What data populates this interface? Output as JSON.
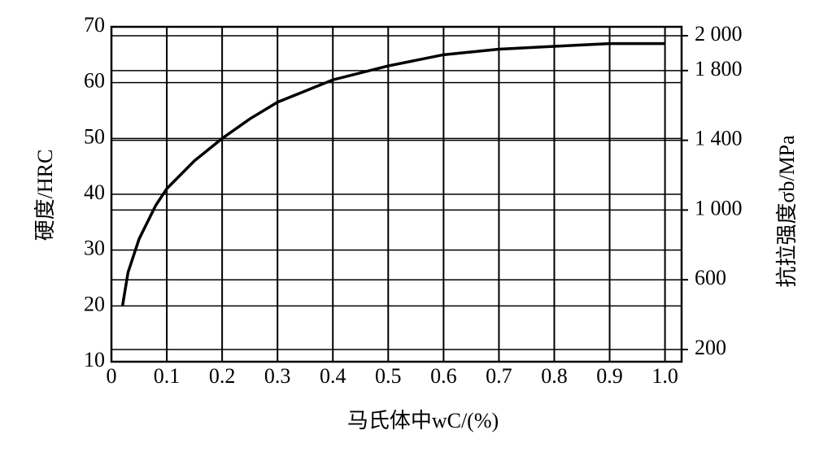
{
  "chart_data": {
    "type": "line",
    "x_label": "马氏体中wC/(%)",
    "y_label": "硬度/HRC",
    "y2_label": "抗拉强度σb/MPa",
    "x": [
      0.02,
      0.03,
      0.05,
      0.08,
      0.1,
      0.15,
      0.2,
      0.25,
      0.3,
      0.35,
      0.4,
      0.5,
      0.6,
      0.7,
      0.8,
      0.9,
      1.0
    ],
    "series": [
      {
        "color": "#000000",
        "values": [
          20,
          26,
          32,
          38,
          41,
          46,
          50,
          53.5,
          56.5,
          58.5,
          60.5,
          63,
          65,
          66,
          66.5,
          67,
          67
        ]
      }
    ],
    "xlim": [
      0,
      1.03
    ],
    "xticks": [
      0,
      0.1,
      0.2,
      0.3,
      0.4,
      0.5,
      0.6,
      0.7,
      0.8,
      0.9,
      {
        "value": 1,
        "label": "1.0"
      }
    ],
    "ylim": [
      10,
      70
    ],
    "yticks": [
      10,
      20,
      30,
      40,
      50,
      60,
      70
    ],
    "y2lim": [
      130,
      2051
    ],
    "y2ticks": [
      {
        "value": 2000,
        "label": "2 000"
      },
      {
        "value": 1800,
        "label": "1 800"
      },
      {
        "value": 1400,
        "label": "1 400"
      },
      {
        "value": 1000,
        "label": "1 000"
      },
      600,
      200
    ],
    "grid": true
  }
}
